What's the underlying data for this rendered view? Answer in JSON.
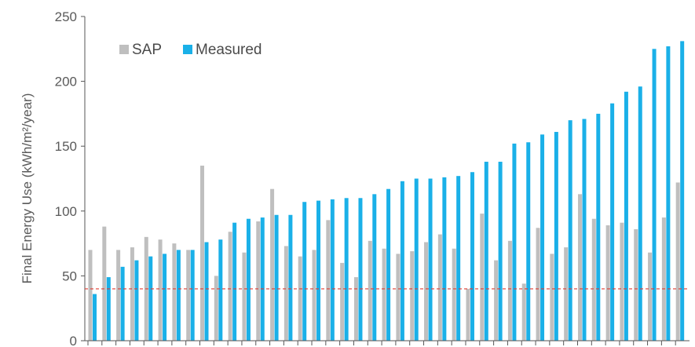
{
  "chart_data": {
    "type": "bar",
    "title": "",
    "xlabel": "",
    "ylabel": "Final Energy Use (kWh/m²/year)",
    "ylim": [
      0,
      250
    ],
    "yticks": [
      0,
      50,
      100,
      150,
      200,
      250
    ],
    "grid": false,
    "legend_position": "top-left",
    "series": [
      {
        "name": "SAP",
        "color": "#bfbfbf",
        "values": [
          70,
          88,
          70,
          72,
          80,
          78,
          75,
          70,
          135,
          50,
          84,
          68,
          92,
          117,
          73,
          65,
          70,
          93,
          60,
          49,
          77,
          71,
          67,
          69,
          76,
          82,
          71,
          40,
          98,
          62,
          77,
          44,
          87,
          67,
          72,
          113,
          94,
          89,
          91,
          86,
          68,
          95,
          122
        ]
      },
      {
        "name": "Measured",
        "color": "#1ab0e8",
        "values": [
          36,
          49,
          57,
          62,
          65,
          67,
          70,
          70,
          76,
          78,
          91,
          94,
          95,
          97,
          97,
          107,
          108,
          109,
          110,
          110,
          113,
          117,
          123,
          125,
          125,
          126,
          127,
          130,
          138,
          138,
          152,
          153,
          159,
          161,
          170,
          171,
          175,
          183,
          192,
          196,
          225,
          227,
          231
        ]
      }
    ],
    "reference_line": {
      "value": 40,
      "color": "#e03c31",
      "style": "dashed"
    }
  }
}
